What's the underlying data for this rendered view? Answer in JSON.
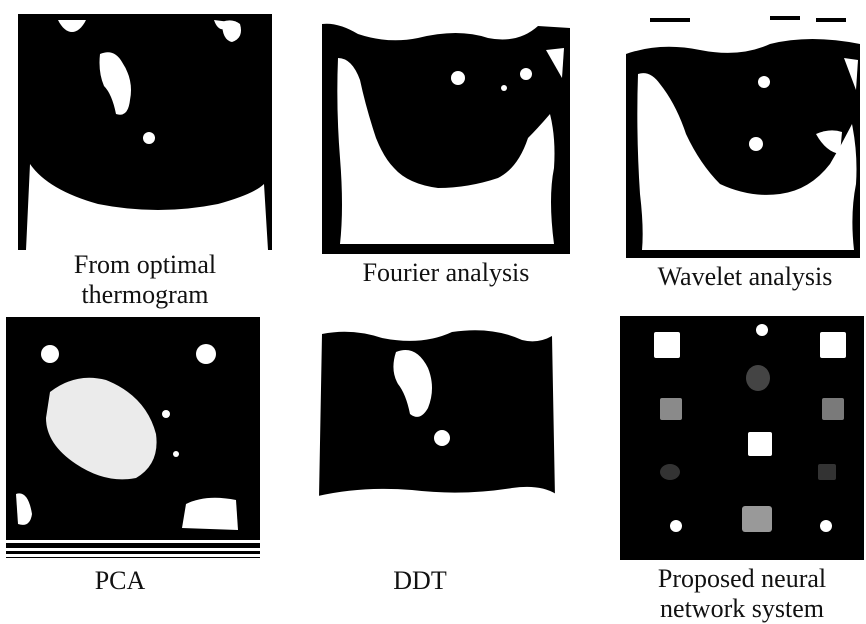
{
  "panels": [
    {
      "id": "optimal",
      "caption": [
        "From optimal",
        "thermogram"
      ]
    },
    {
      "id": "fourier",
      "caption": [
        "Fourier analysis"
      ]
    },
    {
      "id": "wavelet",
      "caption": [
        "Wavelet analysis"
      ]
    },
    {
      "id": "pca",
      "caption": [
        "PCA"
      ]
    },
    {
      "id": "ddt",
      "caption": [
        "DDT"
      ]
    },
    {
      "id": "neural",
      "caption": [
        "Proposed neural",
        "network system"
      ]
    }
  ]
}
